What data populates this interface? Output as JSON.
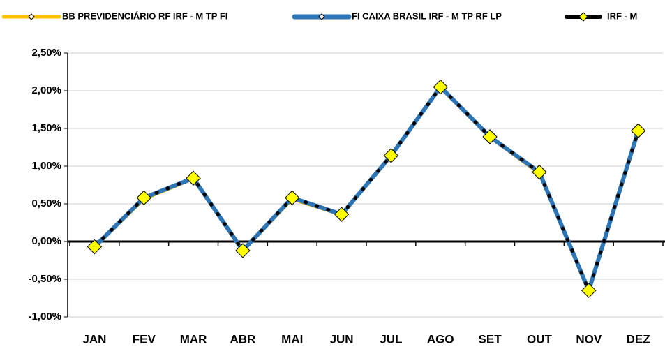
{
  "chart_data": {
    "type": "line",
    "categories": [
      "JAN",
      "FEV",
      "MAR",
      "ABR",
      "MAI",
      "JUN",
      "JUL",
      "AGO",
      "SET",
      "OUT",
      "NOV",
      "DEZ"
    ],
    "series": [
      {
        "name": "BB PREVIDENCIÁRIO RF IRF - M TP FI",
        "color": "#ffc000",
        "values": [
          -0.08,
          0.56,
          0.83,
          -0.13,
          0.56,
          0.35,
          1.13,
          2.04,
          1.38,
          0.9,
          -0.67,
          1.46
        ]
      },
      {
        "name": "FI CAIXA BRASIL IRF - M TP RF LP",
        "color": "#2e75b6",
        "values": [
          -0.07,
          0.58,
          0.84,
          -0.12,
          0.58,
          0.36,
          1.14,
          2.05,
          1.39,
          0.92,
          -0.65,
          1.47
        ]
      },
      {
        "name": "IRF - M",
        "color": "#000000",
        "values": [
          -0.07,
          0.58,
          0.84,
          -0.12,
          0.58,
          0.36,
          1.14,
          2.05,
          1.39,
          0.92,
          -0.65,
          1.47
        ]
      }
    ],
    "ylim": [
      -1.0,
      2.5
    ],
    "yticks": [
      {
        "value": -1.0,
        "label": "-1,00%"
      },
      {
        "value": -0.5,
        "label": "-0,50%"
      },
      {
        "value": 0,
        "label": "0,00%"
      },
      {
        "value": 0.5,
        "label": "0,50%"
      },
      {
        "value": 1.0,
        "label": "1,00%"
      },
      {
        "value": 1.5,
        "label": "1,50%"
      },
      {
        "value": 2.0,
        "label": "2,00%"
      },
      {
        "value": 2.5,
        "label": "2,50%"
      }
    ],
    "grid": true,
    "legend": "top"
  }
}
